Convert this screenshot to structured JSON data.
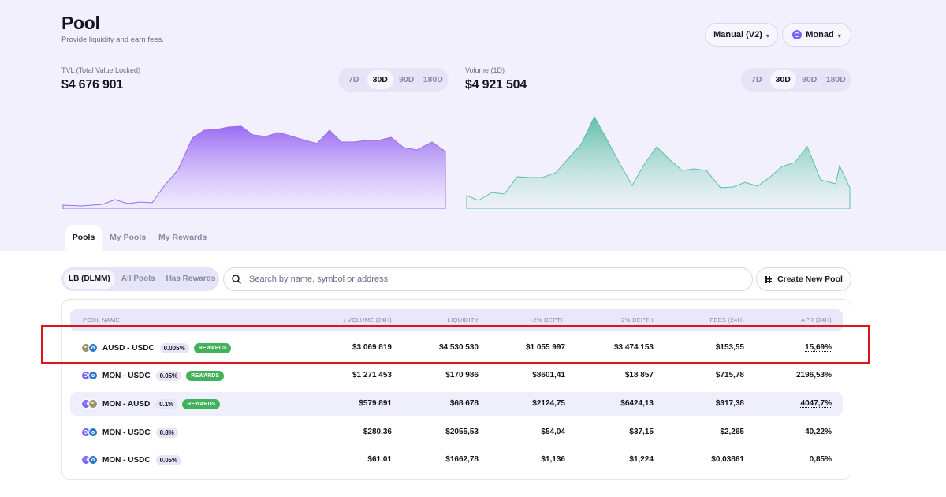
{
  "header": {
    "title": "Pool",
    "subtitle": "Provide liquidity and earn fees.",
    "version_select": "Manual (V2)",
    "network_select": "Monad"
  },
  "tvl": {
    "label": "TVL (Total Value Locked)",
    "value": "$4 676 901",
    "ranges": [
      "7D",
      "30D",
      "90D",
      "180D"
    ],
    "active_range": "30D"
  },
  "volume": {
    "label": "Volume (1D)",
    "value": "$4 921 504",
    "ranges": [
      "7D",
      "30D",
      "90D",
      "180D"
    ],
    "active_range": "30D"
  },
  "tabs": [
    "Pools",
    "My Pools",
    "My Rewards"
  ],
  "filters": [
    "LB (DLMM)",
    "All Pools",
    "Has Rewards"
  ],
  "search": {
    "placeholder": "Search by name, symbol or address"
  },
  "create_button": "Create New Pool",
  "table": {
    "headers": [
      "POOL NAME",
      "VOLUME (24H)",
      "LIQUIDITY",
      "+2% DEPTH",
      "-2% DEPTH",
      "FEES (24H)",
      "APR (24H)"
    ],
    "sort_indicator": "↓",
    "rows": [
      {
        "name": "AUSD - USDC",
        "fee": "0.005%",
        "rewards": "REWARDS",
        "volume": "$3 069 819",
        "liquidity": "$4 530 530",
        "depth_plus": "$1 055 997",
        "depth_minus": "$3 474 153",
        "fees": "$153,55",
        "apr": "15,69%"
      },
      {
        "name": "MON - USDC",
        "fee": "0.05%",
        "rewards": "REWARDS",
        "volume": "$1 271 453",
        "liquidity": "$170 986",
        "depth_plus": "$8601,41",
        "depth_minus": "$18 857",
        "fees": "$715,78",
        "apr": "2196,53%"
      },
      {
        "name": "MON - AUSD",
        "fee": "0.1%",
        "rewards": "REWARDS",
        "volume": "$579 891",
        "liquidity": "$68 678",
        "depth_plus": "$2124,75",
        "depth_minus": "$6424,13",
        "fees": "$317,38",
        "apr": "4047,7%"
      },
      {
        "name": "MON - USDC",
        "fee": "0.8%",
        "rewards": "",
        "volume": "$280,36",
        "liquidity": "$2055,53",
        "depth_plus": "$54,04",
        "depth_minus": "$37,15",
        "fees": "$2,265",
        "apr": "40,22%"
      },
      {
        "name": "MON - USDC",
        "fee": "0.05%",
        "rewards": "",
        "volume": "$61,01",
        "liquidity": "$1662,78",
        "depth_plus": "$1,136",
        "depth_minus": "$1,224",
        "fees": "$0,03861",
        "apr": "0,85%"
      }
    ]
  },
  "colors": {
    "tvl_chart": "#9b6cf2",
    "volume_chart": "#5ebfa6",
    "rewards_badge": "#43b05c",
    "highlight": "#e0141b"
  }
}
